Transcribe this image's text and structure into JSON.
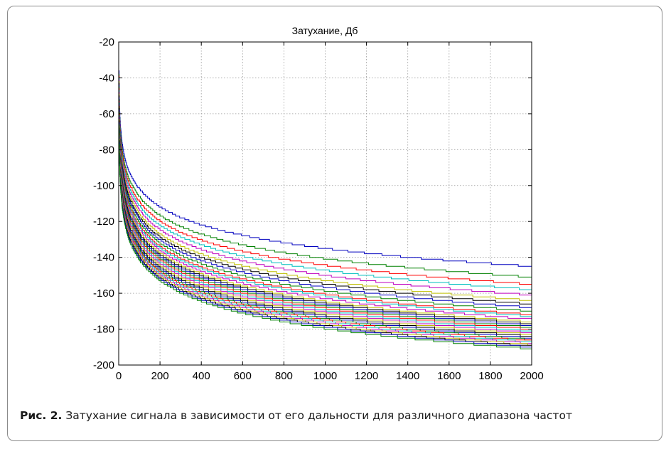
{
  "figure": {
    "caption_label": "Рис. 2.",
    "caption_text": "Затухание сигнала в зависимости от его дальности для различного диапазона частот"
  },
  "chart_data": {
    "type": "line",
    "title": "Затухание, Дб",
    "xlabel": "",
    "ylabel": "",
    "xlim": [
      0,
      2000
    ],
    "ylim": [
      -200,
      -20
    ],
    "x_ticks": [
      0,
      200,
      400,
      600,
      800,
      1000,
      1200,
      1400,
      1600,
      1800,
      2000
    ],
    "y_ticks": [
      -20,
      -40,
      -60,
      -80,
      -100,
      -120,
      -140,
      -160,
      -180,
      -200
    ],
    "grid": true,
    "legend": "none",
    "x_start": 1,
    "x_end": 2000,
    "curve_model": "stepped curves decreasing with distance",
    "start_values": [
      -36,
      -38,
      -39,
      -40,
      -41,
      -42,
      -43,
      -44,
      -45,
      -46,
      -47,
      -48,
      -49,
      -50,
      -51,
      -52,
      -53,
      -54,
      -55,
      -56,
      -57,
      -58,
      -59,
      -60,
      -61,
      -62,
      -63,
      -64,
      -65,
      -66
    ],
    "end_values": [
      -145,
      -151,
      -155,
      -158,
      -161,
      -164,
      -166,
      -168,
      -170,
      -172,
      -173,
      -174.5,
      -176,
      -177,
      -178,
      -179,
      -180,
      -181,
      -182,
      -183,
      -184,
      -185,
      -185.8,
      -186.5,
      -187.2,
      -188,
      -188.7,
      -189.4,
      -190,
      -191
    ],
    "series_colors": [
      "#0000bf",
      "#008000",
      "#ff0000",
      "#00bfbf",
      "#bf00bf",
      "#bfbf00",
      "#000000"
    ]
  }
}
